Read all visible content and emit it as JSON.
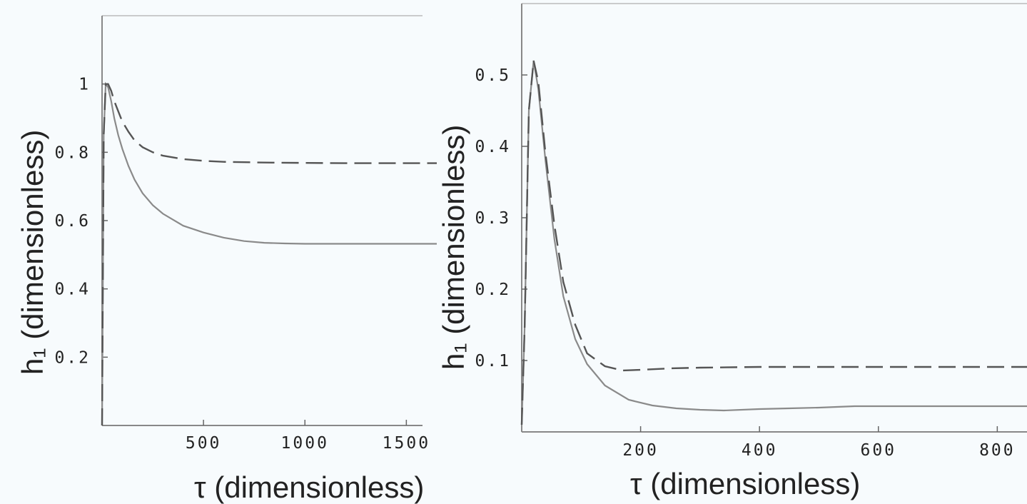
{
  "chart_data": [
    {
      "id": "left",
      "type": "line",
      "title": "",
      "xlabel": "τ (dimensionless)",
      "ylabel": "h₁ (dimensionless)",
      "xlim": [
        0,
        1650
      ],
      "ylim": [
        0,
        1.2
      ],
      "x_ticks": [
        {
          "value": 500,
          "label": "500"
        },
        {
          "value": 1000,
          "label": "1000"
        },
        {
          "value": 1500,
          "label": "1500"
        }
      ],
      "y_ticks": [
        {
          "value": 0.2,
          "label": "0.2"
        },
        {
          "value": 0.4,
          "label": "0.4"
        },
        {
          "value": 0.6,
          "label": "0.6"
        },
        {
          "value": 0.8,
          "label": "0.8"
        },
        {
          "value": 1.0,
          "label": "1"
        }
      ],
      "grid": false,
      "series": [
        {
          "style": "solid",
          "x": [
            0,
            8,
            18,
            30,
            45,
            60,
            80,
            100,
            130,
            160,
            200,
            250,
            300,
            400,
            500,
            600,
            700,
            800,
            900,
            1000,
            1200,
            1400,
            1650
          ],
          "y": [
            0.0,
            0.85,
            1.0,
            0.99,
            0.95,
            0.9,
            0.85,
            0.81,
            0.76,
            0.72,
            0.68,
            0.645,
            0.62,
            0.585,
            0.565,
            0.55,
            0.54,
            0.535,
            0.533,
            0.532,
            0.532,
            0.532,
            0.532
          ]
        },
        {
          "style": "dashed",
          "x": [
            0,
            8,
            18,
            30,
            45,
            60,
            80,
            100,
            130,
            160,
            200,
            250,
            300,
            400,
            500,
            600,
            800,
            1000,
            1200,
            1400,
            1650
          ],
          "y": [
            0.0,
            0.85,
            1.0,
            1.0,
            0.98,
            0.95,
            0.92,
            0.89,
            0.86,
            0.835,
            0.815,
            0.8,
            0.79,
            0.78,
            0.775,
            0.772,
            0.77,
            0.769,
            0.768,
            0.768,
            0.768
          ]
        }
      ]
    },
    {
      "id": "right",
      "type": "line",
      "title": "",
      "xlabel": "τ (dimensionless)",
      "ylabel": "h₁ (dimensionless)",
      "xlim": [
        0,
        850
      ],
      "ylim": [
        0,
        0.6
      ],
      "x_ticks": [
        {
          "value": 200,
          "label": "200"
        },
        {
          "value": 400,
          "label": "400"
        },
        {
          "value": 600,
          "label": "600"
        },
        {
          "value": 800,
          "label": "800"
        }
      ],
      "y_ticks": [
        {
          "value": 0.1,
          "label": "0.1"
        },
        {
          "value": 0.2,
          "label": "0.2"
        },
        {
          "value": 0.3,
          "label": "0.3"
        },
        {
          "value": 0.4,
          "label": "0.4"
        },
        {
          "value": 0.5,
          "label": "0.5"
        }
      ],
      "grid": false,
      "series": [
        {
          "style": "solid",
          "x": [
            0,
            5,
            12,
            20,
            28,
            40,
            55,
            70,
            90,
            110,
            140,
            180,
            220,
            260,
            300,
            340,
            400,
            450,
            500,
            560,
            600,
            700,
            800,
            850
          ],
          "y": [
            0.01,
            0.15,
            0.45,
            0.52,
            0.48,
            0.38,
            0.27,
            0.19,
            0.13,
            0.095,
            0.065,
            0.045,
            0.037,
            0.033,
            0.031,
            0.03,
            0.032,
            0.033,
            0.034,
            0.036,
            0.036,
            0.036,
            0.036,
            0.036
          ]
        },
        {
          "style": "dashed",
          "x": [
            0,
            5,
            12,
            20,
            28,
            40,
            55,
            70,
            90,
            110,
            140,
            170,
            200,
            250,
            300,
            400,
            500,
            600,
            700,
            800,
            850
          ],
          "y": [
            0.01,
            0.15,
            0.45,
            0.52,
            0.49,
            0.39,
            0.29,
            0.21,
            0.15,
            0.11,
            0.092,
            0.086,
            0.087,
            0.089,
            0.09,
            0.091,
            0.091,
            0.091,
            0.091,
            0.091,
            0.091
          ]
        }
      ]
    }
  ]
}
